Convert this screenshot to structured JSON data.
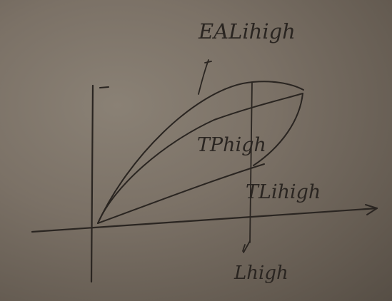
{
  "labels": {
    "ea_label": "EALihigh",
    "tp_label": "TPhigh",
    "tl_label": "TLihigh",
    "l_label": "Lhigh"
  },
  "colors": {
    "ink": "#2a2521",
    "paper": "#7b7166"
  }
}
